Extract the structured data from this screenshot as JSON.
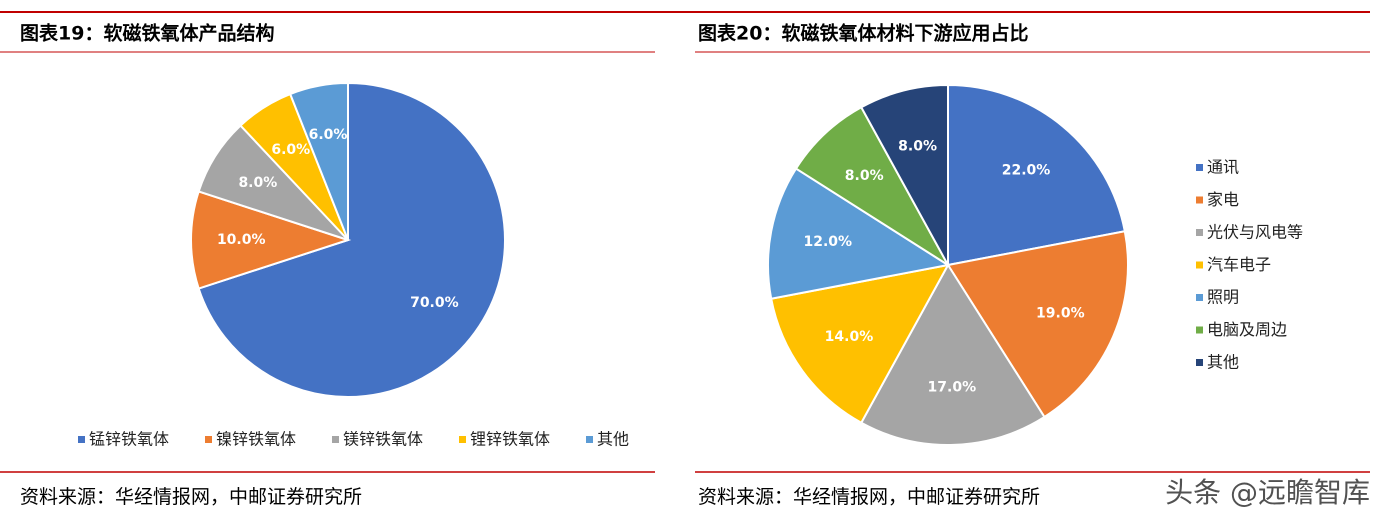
{
  "chart_data": [
    {
      "type": "pie",
      "title": "图表19：软磁铁氧体产品结构",
      "categories": [
        "锰锌铁氧体",
        "镍锌铁氧体",
        "镁锌铁氧体",
        "锂锌铁氧体",
        "其他"
      ],
      "values": [
        70,
        10,
        8,
        6,
        6
      ],
      "value_labels": [
        "70.0%",
        "10.0%",
        "8.0%",
        "6.0%",
        "6.0%"
      ],
      "colors": [
        "#4472C4",
        "#ED7D31",
        "#A5A5A5",
        "#FFC000",
        "#5B9BD5"
      ],
      "legend": "bottom",
      "source": "资料来源：华经情报网，中邮证券研究所"
    },
    {
      "type": "pie",
      "title": "图表20：软磁铁氧体材料下游应用占比",
      "categories": [
        "通讯",
        "家电",
        "光伏与风电等",
        "汽车电子",
        "照明",
        "电脑及周边",
        "其他"
      ],
      "values": [
        22,
        19,
        17,
        14,
        12,
        8,
        8
      ],
      "value_labels": [
        "22.0%",
        "19.0%",
        "17.0%",
        "14.0%",
        "12.0%",
        "8.0%",
        "8.0%"
      ],
      "colors": [
        "#4472C4",
        "#ED7D31",
        "#A5A5A5",
        "#FFC000",
        "#5B9BD5",
        "#70AD47",
        "#264478"
      ],
      "legend": "right",
      "source": "资料来源：华经情报网，中邮证券研究所"
    }
  ],
  "watermark": "头条 @远瞻智库"
}
